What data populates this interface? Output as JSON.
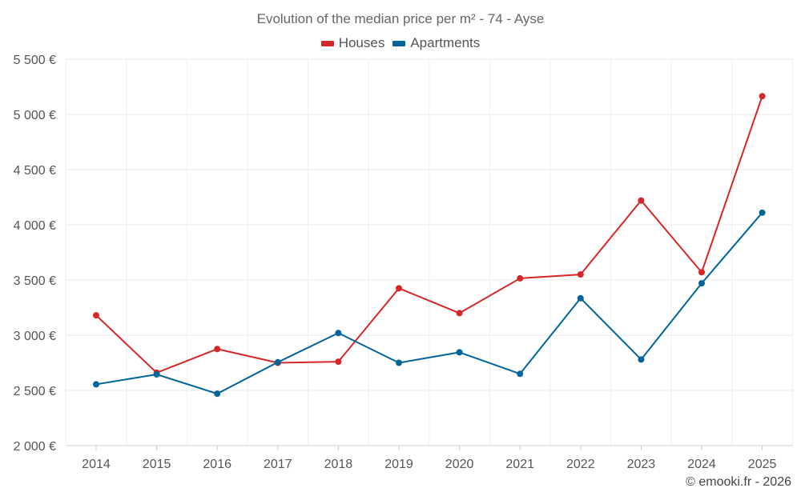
{
  "chart_data": {
    "type": "line",
    "title": "Evolution of the median price per m² - 74 - Ayse",
    "categories": [
      "2014",
      "2015",
      "2016",
      "2017",
      "2018",
      "2019",
      "2020",
      "2021",
      "2022",
      "2023",
      "2024",
      "2025"
    ],
    "series": [
      {
        "name": "Houses",
        "color": "#d62728",
        "values": [
          3180,
          2660,
          2875,
          2750,
          2760,
          3425,
          3200,
          3515,
          3550,
          4220,
          3570,
          5165
        ]
      },
      {
        "name": "Apartments",
        "color": "#006699",
        "values": [
          2555,
          2645,
          2470,
          2755,
          3020,
          2750,
          2845,
          2650,
          3335,
          2780,
          3470,
          4110
        ]
      }
    ],
    "ylim": [
      2000,
      5500
    ],
    "yticks": [
      2000,
      2500,
      3000,
      3500,
      4000,
      4500,
      5000,
      5500
    ],
    "ytick_labels": [
      "2 000 €",
      "2 500 €",
      "3 000 €",
      "3 500 €",
      "4 000 €",
      "4 500 €",
      "5 000 €",
      "5 500 €"
    ],
    "xlabel": "",
    "ylabel": "",
    "grid": true,
    "legend_position": "top-center"
  },
  "credit": "© emooki.fr - 2026"
}
